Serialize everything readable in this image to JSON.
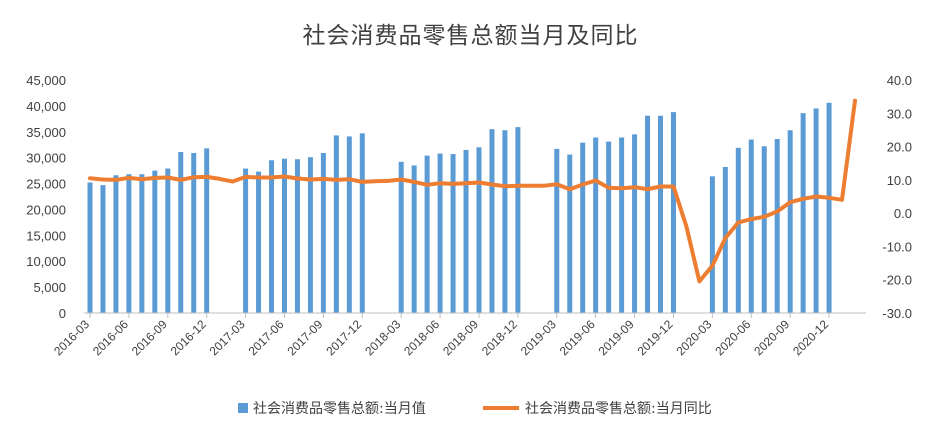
{
  "chart_data": {
    "type": "bar+line",
    "title": "社会消费品零售总额当月及同比",
    "y_left": {
      "min": 0,
      "max": 45000,
      "step": 5000,
      "ticks": [
        "0",
        "5,000",
        "10,000",
        "15,000",
        "20,000",
        "25,000",
        "30,000",
        "35,000",
        "40,000",
        "45,000"
      ]
    },
    "y_right": {
      "min": -30,
      "max": 40,
      "step": 10,
      "ticks": [
        "-30.0",
        "-20.0",
        "-10.0",
        "0.0",
        "10.0",
        "20.0",
        "30.0",
        "40.0"
      ]
    },
    "x_tick_labels": [
      "2016-03",
      "2016-06",
      "2016-09",
      "2016-12",
      "2017-03",
      "2017-06",
      "2017-09",
      "2017-12",
      "2018-03",
      "2018-06",
      "2018-09",
      "2018-12",
      "2019-03",
      "2019-06",
      "2019-09",
      "2019-12",
      "2020-03",
      "2020-06",
      "2020-09",
      "2020-12"
    ],
    "categories": [
      "2016-03",
      "2016-04",
      "2016-05",
      "2016-06",
      "2016-07",
      "2016-08",
      "2016-09",
      "2016-10",
      "2016-11",
      "2016-12",
      "2017-01",
      "2017-02",
      "2017-03",
      "2017-04",
      "2017-05",
      "2017-06",
      "2017-07",
      "2017-08",
      "2017-09",
      "2017-10",
      "2017-11",
      "2017-12",
      "2018-01",
      "2018-02",
      "2018-03",
      "2018-04",
      "2018-05",
      "2018-06",
      "2018-07",
      "2018-08",
      "2018-09",
      "2018-10",
      "2018-11",
      "2018-12",
      "2019-01",
      "2019-02",
      "2019-03",
      "2019-04",
      "2019-05",
      "2019-06",
      "2019-07",
      "2019-08",
      "2019-09",
      "2019-10",
      "2019-11",
      "2019-12",
      "2020-01",
      "2020-02",
      "2020-03",
      "2020-04",
      "2020-05",
      "2020-06",
      "2020-07",
      "2020-08",
      "2020-09",
      "2020-10",
      "2020-11",
      "2020-12",
      "2021-01",
      "2021-02"
    ],
    "series": [
      {
        "name": "社会消费品零售总额:当月值",
        "type": "bar",
        "axis": "left",
        "color": "#5B9BD5",
        "values": [
          25200,
          24700,
          26600,
          26800,
          26800,
          27500,
          27900,
          31100,
          30900,
          31800,
          null,
          null,
          27900,
          27300,
          29500,
          29800,
          29700,
          30100,
          30900,
          34300,
          34100,
          34700,
          null,
          null,
          29200,
          28500,
          30400,
          30800,
          30700,
          31500,
          32000,
          35500,
          35300,
          35900,
          null,
          null,
          31700,
          30600,
          32900,
          33900,
          33100,
          33900,
          34500,
          38100,
          38100,
          38800,
          null,
          null,
          26400,
          28200,
          31900,
          33500,
          32200,
          33600,
          35300,
          38600,
          39500,
          40600,
          null,
          null
        ]
      },
      {
        "name": "社会消费品零售总额:当月同比",
        "type": "line",
        "axis": "right",
        "color": "#ED7D31",
        "values": [
          10.5,
          10.1,
          10.0,
          10.6,
          10.2,
          10.6,
          10.7,
          10.0,
          10.8,
          10.9,
          10.3,
          9.5,
          10.9,
          10.7,
          10.7,
          11.0,
          10.4,
          10.1,
          10.3,
          10.0,
          10.2,
          9.4,
          9.6,
          9.7,
          10.1,
          9.4,
          8.5,
          9.0,
          8.8,
          9.0,
          9.2,
          8.6,
          8.1,
          8.2,
          8.2,
          8.2,
          8.7,
          7.2,
          8.6,
          9.8,
          7.6,
          7.5,
          7.8,
          7.2,
          8.0,
          8.0,
          -4.0,
          -20.5,
          -15.8,
          -7.5,
          -2.8,
          -1.8,
          -1.1,
          0.5,
          3.3,
          4.3,
          5.0,
          4.6,
          4.0,
          33.8
        ]
      }
    ],
    "legend_position": "bottom",
    "grid": false
  }
}
